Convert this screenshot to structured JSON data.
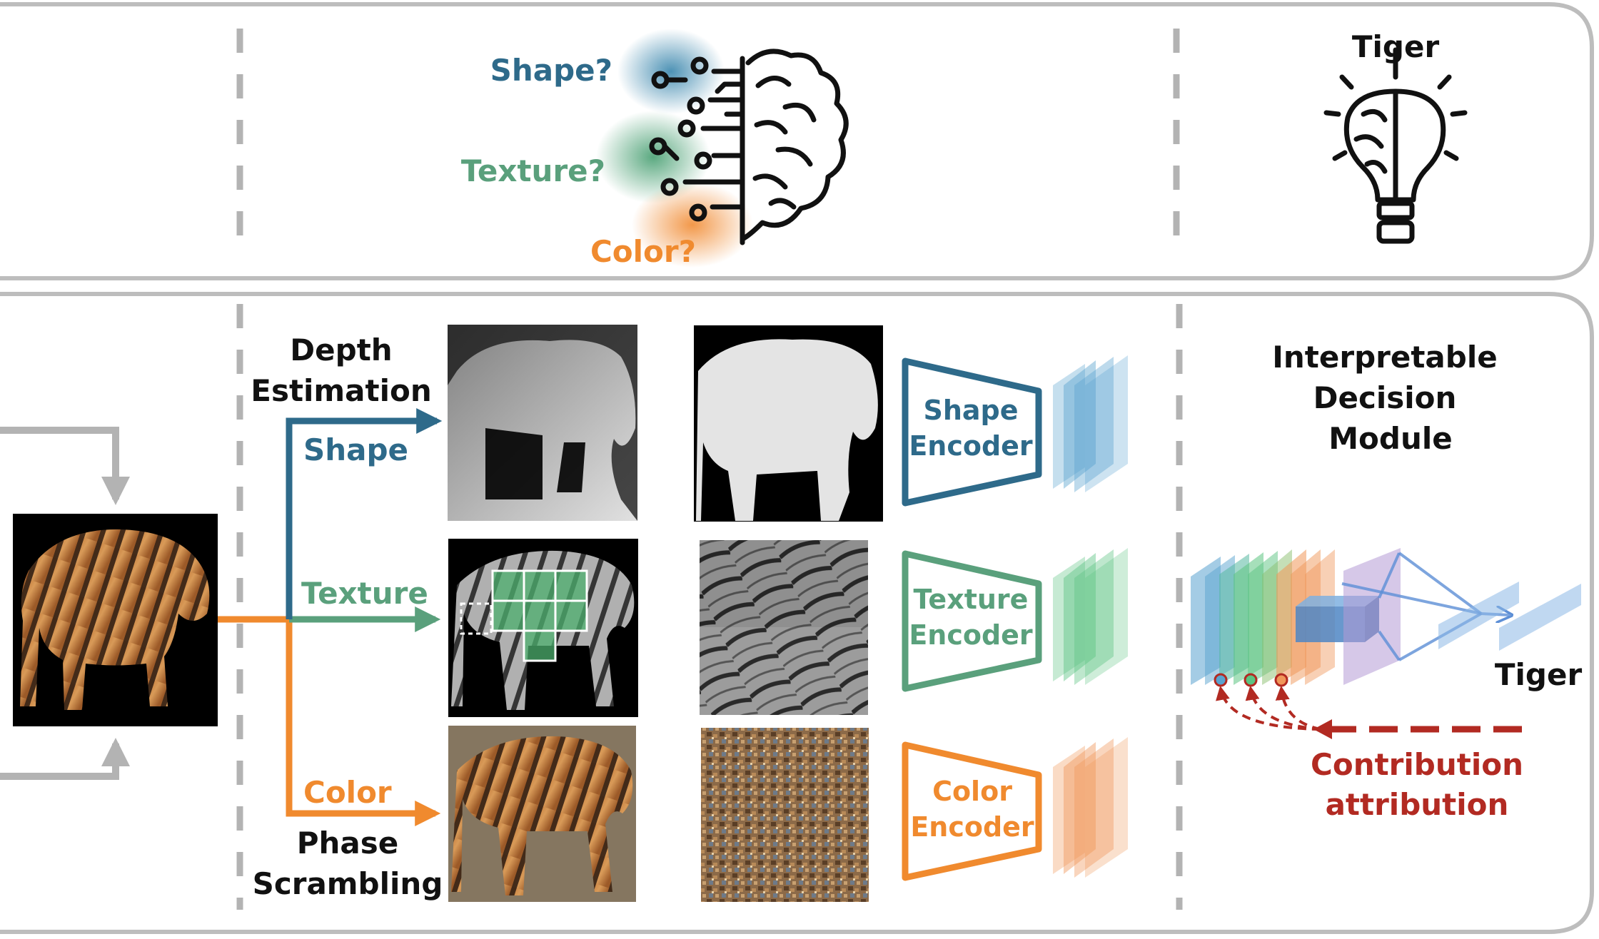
{
  "colors": {
    "shape": "#2e6a8a",
    "texture": "#5aa07c",
    "color": "#f08a2e",
    "red": "#b22a22",
    "gray": "#b3b3b3",
    "panel_border": "#bdbdbd"
  },
  "top_panel": {
    "labels": {
      "shape_q": "Shape?",
      "texture_q": "Texture?",
      "color_q": "Color?"
    },
    "icons": {
      "brain": "brain-icon",
      "bulb": "lightbulb-brain-icon"
    },
    "result_label": "Tiger"
  },
  "bottom_panel": {
    "depth_estimation_line1": "Depth",
    "depth_estimation_line2": "Estimation",
    "phase_scrambling_line1": "Phase",
    "phase_scrambling_line2": "Scrambling",
    "branch_shape": "Shape",
    "branch_texture": "Texture",
    "branch_color": "Color",
    "shape_encoder_line1": "Shape",
    "shape_encoder_line2": "Encoder",
    "texture_encoder_line1": "Texture",
    "texture_encoder_line2": "Encoder",
    "color_encoder_line1": "Color",
    "color_encoder_line2": "Encoder",
    "idm_line1": "Interpretable",
    "idm_line2": "Decision",
    "idm_line3": "Module",
    "output_label": "Tiger",
    "contribution_line1": "Contribution",
    "contribution_line2": "attribution"
  }
}
